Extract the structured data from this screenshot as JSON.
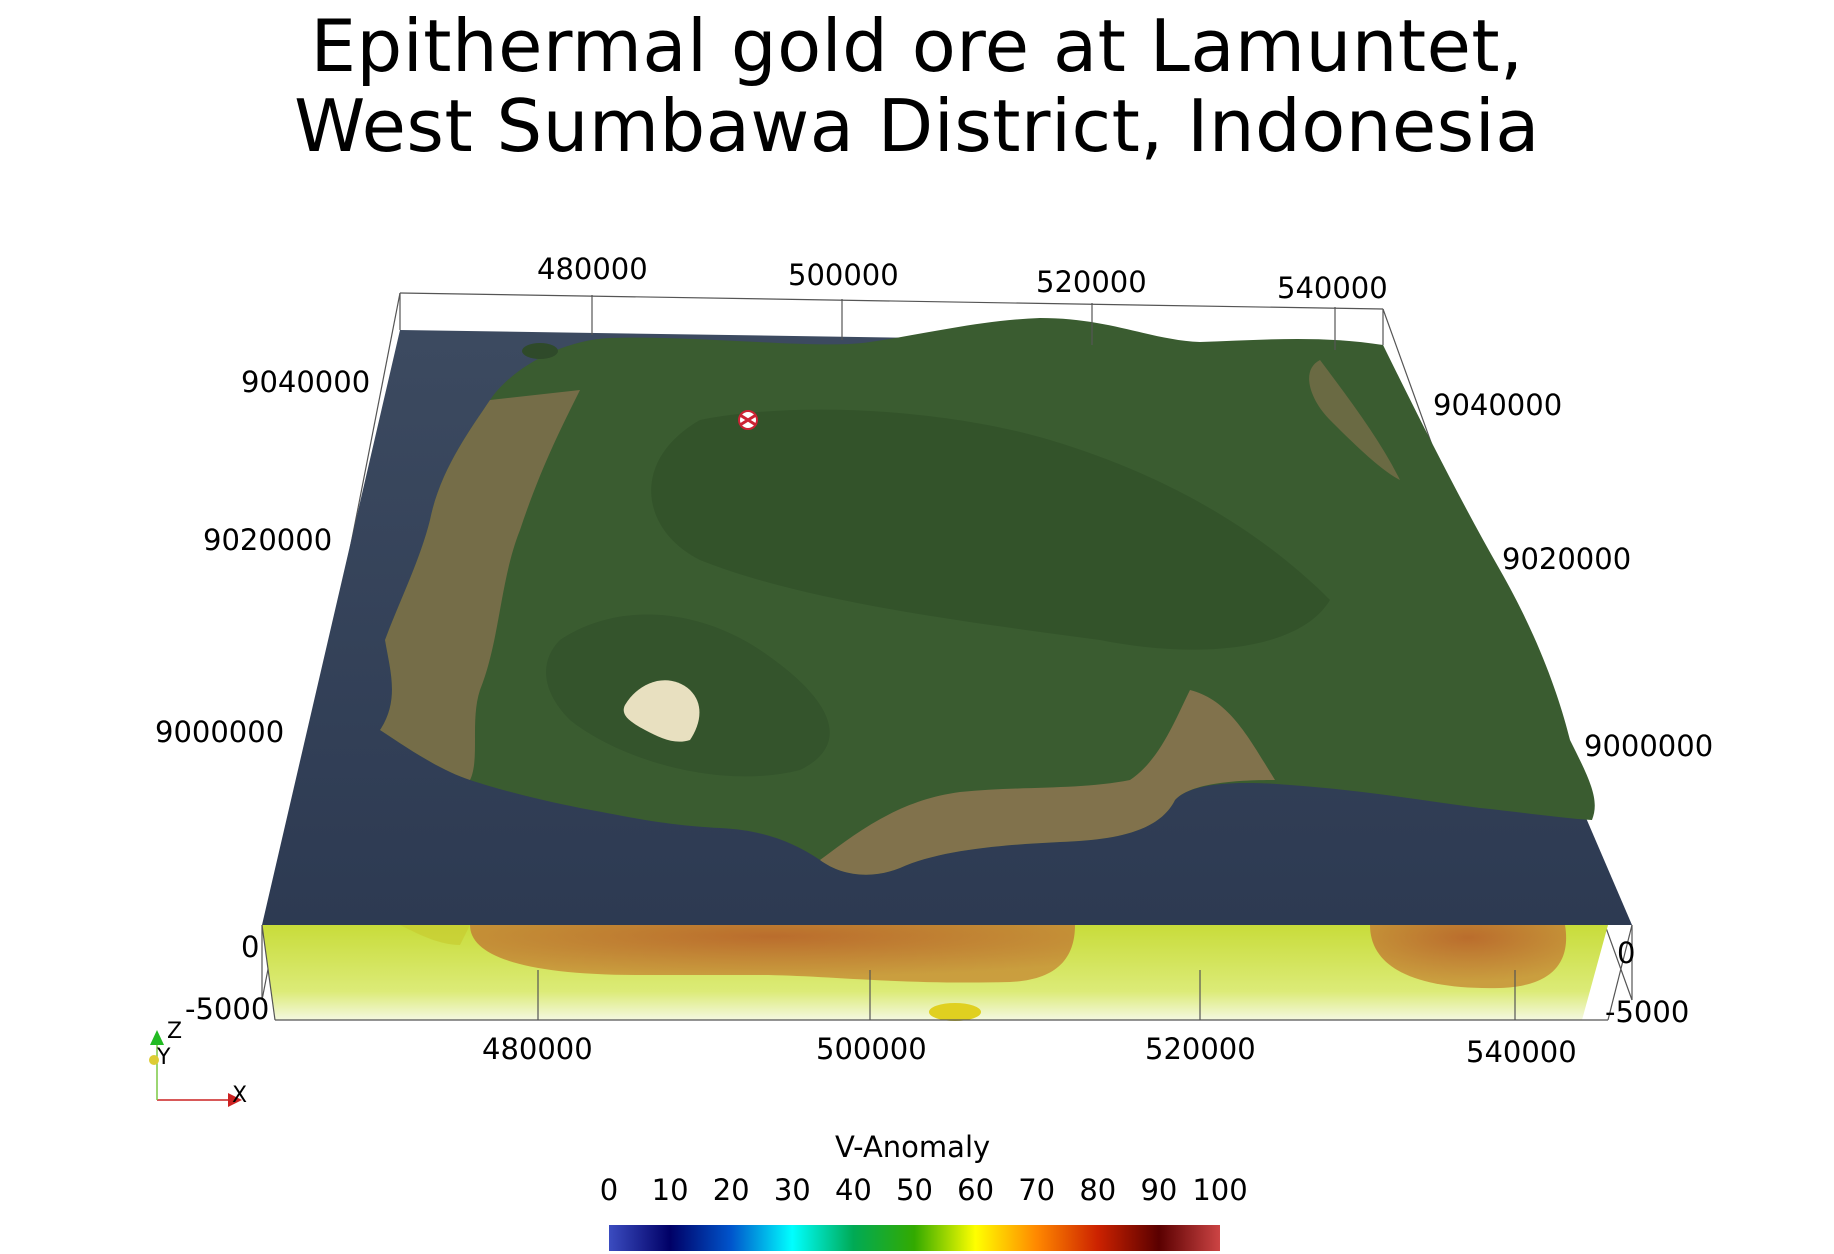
{
  "title": {
    "line1": "Epithermal gold ore at Lamuntet,",
    "line2": "West Sumbawa District, Indonesia"
  },
  "axes": {
    "x_ticks_top": [
      "480000",
      "500000",
      "520000",
      "540000"
    ],
    "x_ticks_bottom": [
      "480000",
      "500000",
      "520000",
      "540000"
    ],
    "y_ticks_left": [
      "9040000",
      "9020000",
      "9000000"
    ],
    "y_ticks_right": [
      "9040000",
      "9020000",
      "9000000"
    ],
    "z_ticks_left": [
      "0",
      "-5000"
    ],
    "z_ticks_right": [
      "0",
      "-5000"
    ]
  },
  "orientation": {
    "x": "X",
    "y": "Y",
    "z": "Z"
  },
  "colorbar": {
    "title": "V-Anomaly",
    "ticks": [
      "0",
      "10",
      "20",
      "30",
      "40",
      "50",
      "60",
      "70",
      "80",
      "90",
      "100"
    ],
    "colors": [
      "#3b4cc0",
      "#000066",
      "#0000cc",
      "#00ffff",
      "#00cc66",
      "#009900",
      "#66cc00",
      "#ffff00",
      "#ff9900",
      "#ff3300",
      "#660000",
      "#cc3333"
    ]
  },
  "layers": {
    "sea_color": "#33405a",
    "land_color": "#3a5a30",
    "coast_color": "#b08060",
    "slice_color": "#d6e85a",
    "anomaly_color": "#c86a28"
  }
}
